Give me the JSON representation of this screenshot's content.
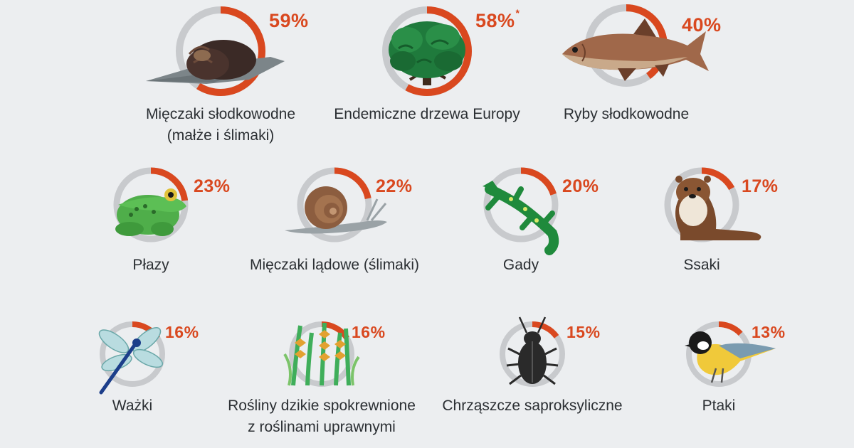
{
  "chart_data": {
    "type": "donut",
    "unit": "%",
    "items": [
      {
        "id": "molluscs-freshwater",
        "value": 59,
        "value_label": "59%",
        "footnote_mark": "",
        "label_lines": [
          "Mięczaki słodkowodne",
          "(małże i ślimaki)"
        ],
        "icon": "freshwater-mussel-icon"
      },
      {
        "id": "endemic-trees",
        "value": 58,
        "value_label": "58%",
        "footnote_mark": "*",
        "label_lines": [
          "Endemiczne drzewa Europy"
        ],
        "icon": "tree-icon"
      },
      {
        "id": "freshwater-fish",
        "value": 40,
        "value_label": "40%",
        "footnote_mark": "",
        "label_lines": [
          "Ryby słodkowodne"
        ],
        "icon": "fish-icon"
      },
      {
        "id": "amphibians",
        "value": 23,
        "value_label": "23%",
        "footnote_mark": "",
        "label_lines": [
          "Płazy"
        ],
        "icon": "frog-icon"
      },
      {
        "id": "land-molluscs",
        "value": 22,
        "value_label": "22%",
        "footnote_mark": "",
        "label_lines": [
          "Mięczaki lądowe (ślimaki)"
        ],
        "icon": "snail-icon"
      },
      {
        "id": "reptiles",
        "value": 20,
        "value_label": "20%",
        "footnote_mark": "",
        "label_lines": [
          "Gady"
        ],
        "icon": "lizard-icon"
      },
      {
        "id": "mammals",
        "value": 17,
        "value_label": "17%",
        "footnote_mark": "",
        "label_lines": [
          "Ssaki"
        ],
        "icon": "otter-icon"
      },
      {
        "id": "dragonflies",
        "value": 16,
        "value_label": "16%",
        "footnote_mark": "",
        "label_lines": [
          "Ważki"
        ],
        "icon": "dragonfly-icon"
      },
      {
        "id": "crop-wild-relatives",
        "value": 16,
        "value_label": "16%",
        "footnote_mark": "",
        "label_lines": [
          "Rośliny dzikie spokrewnione",
          "z roślinami uprawnymi"
        ],
        "icon": "wild-plants-icon"
      },
      {
        "id": "saproxylic-beetles",
        "value": 15,
        "value_label": "15%",
        "footnote_mark": "",
        "label_lines": [
          "Chrząszcze saproksyliczne"
        ],
        "icon": "beetle-icon"
      },
      {
        "id": "birds",
        "value": 13,
        "value_label": "13%",
        "footnote_mark": "",
        "label_lines": [
          "Ptaki"
        ],
        "icon": "bird-icon"
      }
    ]
  },
  "colors": {
    "background": "#eceef0",
    "ring_track": "#c8cacd",
    "ring_value": "#d9481f",
    "label_text": "#2b2f33",
    "value_text": "#d9481f"
  }
}
